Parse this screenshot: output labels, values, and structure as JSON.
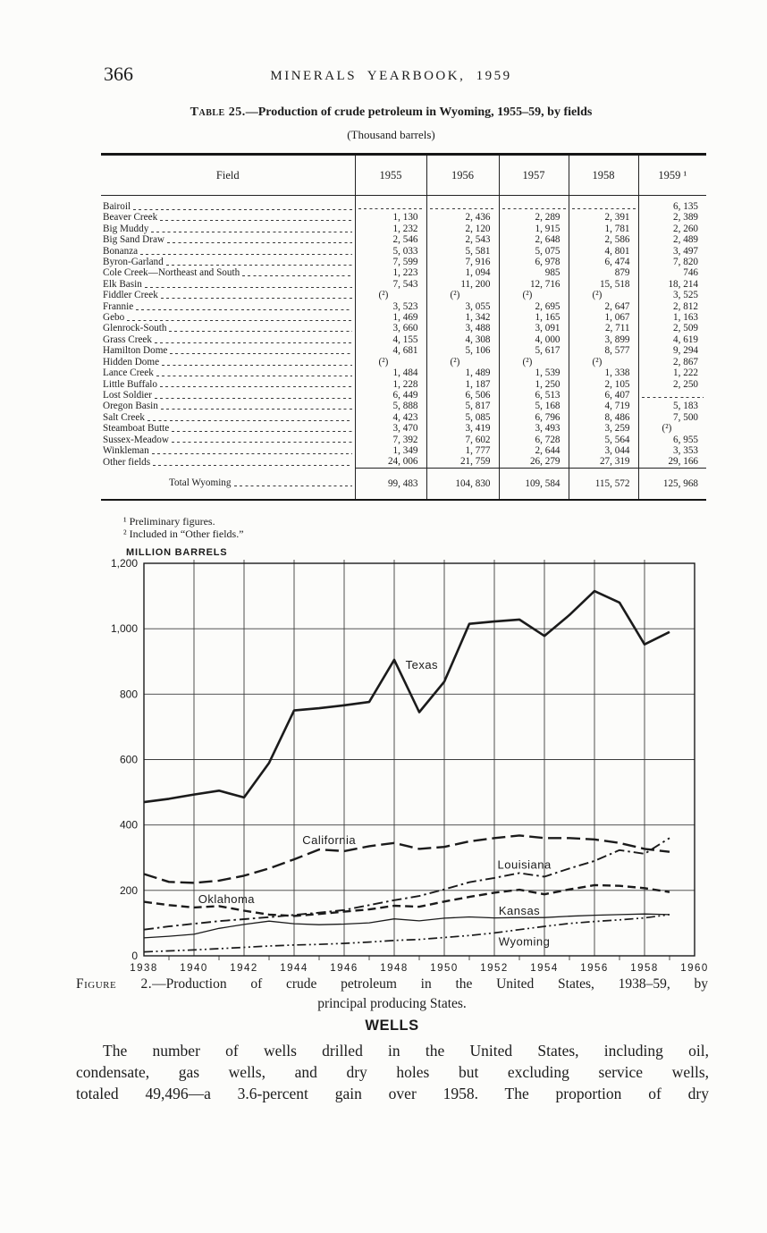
{
  "page": {
    "number": "366",
    "header_title": "MINERALS YEARBOOK, 1959"
  },
  "table": {
    "title_label": "Table 25.",
    "title_rest": "—Production of crude petroleum in Wyoming, 1955–59, by fields",
    "subtitle": "(Thousand barrels)",
    "columns": [
      "Field",
      "1955",
      "1956",
      "1957",
      "1958",
      "1959 ¹"
    ],
    "rows": [
      {
        "field": "Bairoil",
        "values": [
          "",
          "",
          "",
          "",
          "6, 135"
        ]
      },
      {
        "field": "Beaver Creek",
        "values": [
          "1, 130",
          "2, 436",
          "2, 289",
          "2, 391",
          "2, 389"
        ]
      },
      {
        "field": "Big Muddy",
        "values": [
          "1, 232",
          "2, 120",
          "1, 915",
          "1, 781",
          "2, 260"
        ]
      },
      {
        "field": "Big Sand Draw",
        "values": [
          "2, 546",
          "2, 543",
          "2, 648",
          "2, 586",
          "2, 489"
        ]
      },
      {
        "field": "Bonanza",
        "values": [
          "5, 033",
          "5, 581",
          "5, 075",
          "4, 801",
          "3, 497"
        ]
      },
      {
        "field": "Byron-Garland",
        "values": [
          "7, 599",
          "7, 916",
          "6, 978",
          "6, 474",
          "7, 820"
        ]
      },
      {
        "field": "Cole Creek—Northeast and South",
        "values": [
          "1, 223",
          "1, 094",
          "985",
          "879",
          "746"
        ]
      },
      {
        "field": "Elk Basin",
        "values": [
          "7, 543",
          "11, 200",
          "12, 716",
          "15, 518",
          "18, 214"
        ]
      },
      {
        "field": "Fiddler Creek",
        "values": [
          "(²)",
          "(²)",
          "(²)",
          "(²)",
          "3, 525"
        ]
      },
      {
        "field": "Frannie",
        "values": [
          "3, 523",
          "3, 055",
          "2, 695",
          "2, 647",
          "2, 812"
        ]
      },
      {
        "field": "Gebo",
        "values": [
          "1, 469",
          "1, 342",
          "1, 165",
          "1, 067",
          "1, 163"
        ]
      },
      {
        "field": "Glenrock-South",
        "values": [
          "3, 660",
          "3, 488",
          "3, 091",
          "2, 711",
          "2, 509"
        ]
      },
      {
        "field": "Grass Creek",
        "values": [
          "4, 155",
          "4, 308",
          "4, 000",
          "3, 899",
          "4, 619"
        ]
      },
      {
        "field": "Hamilton Dome",
        "values": [
          "4, 681",
          "5, 106",
          "5, 617",
          "8, 577",
          "9, 294"
        ]
      },
      {
        "field": "Hidden Dome",
        "values": [
          "(²)",
          "(²)",
          "(²)",
          "(²)",
          "2, 867"
        ]
      },
      {
        "field": "Lance Creek",
        "values": [
          "1, 484",
          "1, 489",
          "1, 539",
          "1, 338",
          "1, 222"
        ]
      },
      {
        "field": "Little Buffalo",
        "values": [
          "1, 228",
          "1, 187",
          "1, 250",
          "2, 105",
          "2, 250"
        ]
      },
      {
        "field": "Lost Soldier",
        "values": [
          "6, 449",
          "6, 506",
          "6, 513",
          "6, 407",
          ""
        ]
      },
      {
        "field": "Oregon Basin",
        "values": [
          "5, 888",
          "5, 817",
          "5, 168",
          "4, 719",
          "5, 183"
        ]
      },
      {
        "field": "Salt Creek",
        "values": [
          "4, 423",
          "5, 085",
          "6, 796",
          "8, 486",
          "7, 500"
        ]
      },
      {
        "field": "Steamboat Butte",
        "values": [
          "3, 470",
          "3, 419",
          "3, 493",
          "3, 259",
          "(²)"
        ]
      },
      {
        "field": "Sussex-Meadow",
        "values": [
          "7, 392",
          "7, 602",
          "6, 728",
          "5, 564",
          "6, 955"
        ]
      },
      {
        "field": "Winkleman",
        "values": [
          "1, 349",
          "1, 777",
          "2, 644",
          "3, 044",
          "3, 353"
        ]
      },
      {
        "field": "Other fields",
        "values": [
          "24, 006",
          "21, 759",
          "26, 279",
          "27, 319",
          "29, 166"
        ]
      }
    ],
    "total_row": {
      "field": "Total Wyoming",
      "values": [
        "99, 483",
        "104, 830",
        "109, 584",
        "115, 572",
        "125, 968"
      ]
    },
    "footnotes": [
      "¹ Preliminary figures.",
      "² Included in “Other fields.”"
    ]
  },
  "chart_data": {
    "type": "line",
    "title": "Production of crude petroleum in the United States, 1938-59, by principal producing States",
    "unit_label": "MILLION BARRELS",
    "xlabel": "",
    "ylabel": "MILLION BARRELS",
    "x_range": [
      1938,
      1960
    ],
    "ylim": [
      0,
      1200
    ],
    "grid": true,
    "x": [
      1938,
      1939,
      1940,
      1941,
      1942,
      1943,
      1944,
      1945,
      1946,
      1947,
      1948,
      1949,
      1950,
      1951,
      1952,
      1953,
      1954,
      1955,
      1956,
      1957,
      1958,
      1959
    ],
    "xticks": [
      1938,
      1940,
      1942,
      1944,
      1946,
      1948,
      1950,
      1952,
      1954,
      1956,
      1958,
      1960
    ],
    "yticks": [
      0,
      200,
      400,
      600,
      800,
      1000,
      1200
    ],
    "ytick_labels": [
      "0",
      "200",
      "400",
      "600",
      "800",
      "1,000",
      "1,200"
    ],
    "series": [
      {
        "name": "Texas",
        "style": "solid-thick",
        "values": [
          470,
          480,
          493,
          505,
          484,
          590,
          750,
          757,
          766,
          776,
          905,
          745,
          838,
          1015,
          1022,
          1028,
          978,
          1042,
          1115,
          1080,
          952,
          990
        ],
        "label_anchor": {
          "x": 1948.45,
          "y": 888,
          "anchor": "start"
        }
      },
      {
        "name": "California",
        "style": "long-dash",
        "values": [
          250,
          226,
          223,
          230,
          245,
          267,
          295,
          325,
          320,
          335,
          345,
          327,
          333,
          350,
          360,
          368,
          360,
          360,
          356,
          345,
          327,
          318
        ],
        "label_anchor": {
          "x": 1945.4,
          "y": 352,
          "anchor": "middle"
        }
      },
      {
        "name": "Oklahoma",
        "style": "dash",
        "values": [
          165,
          155,
          148,
          152,
          138,
          126,
          122,
          128,
          135,
          142,
          153,
          150,
          166,
          180,
          193,
          202,
          188,
          203,
          216,
          214,
          207,
          195
        ],
        "label_anchor": {
          "x": 1941.3,
          "y": 172,
          "anchor": "middle"
        }
      },
      {
        "name": "Louisiana",
        "style": "dash-dot",
        "values": [
          80,
          90,
          98,
          106,
          112,
          118,
          125,
          132,
          140,
          155,
          170,
          183,
          203,
          225,
          238,
          253,
          242,
          267,
          290,
          323,
          312,
          360
        ],
        "label_anchor": {
          "x": 1953.2,
          "y": 277,
          "anchor": "middle"
        }
      },
      {
        "name": "Kansas",
        "style": "solid-thin",
        "values": [
          55,
          60,
          66,
          84,
          96,
          106,
          98,
          95,
          97,
          101,
          113,
          107,
          115,
          119,
          116,
          117,
          117,
          121,
          124,
          126,
          128,
          126
        ],
        "label_anchor": {
          "x": 1953.0,
          "y": 136,
          "anchor": "middle"
        }
      },
      {
        "name": "Wyoming",
        "style": "dash-dot-dot",
        "values": [
          12,
          15,
          18,
          22,
          26,
          30,
          33,
          35,
          38,
          42,
          47,
          50,
          56,
          62,
          70,
          80,
          90,
          99,
          105,
          110,
          116,
          126
        ],
        "label_anchor": {
          "x": 1953.2,
          "y": 42,
          "anchor": "middle"
        }
      }
    ]
  },
  "figure_caption": {
    "label": "Figure 2.",
    "line1_rest": "—Production of crude petroleum in the United States, 1938–59, by",
    "line2": "principal producing States."
  },
  "wells": {
    "heading": "WELLS",
    "lines": [
      "The number of wells drilled in the United States, including oil,",
      "condensate, gas wells, and dry holes but excluding service wells,",
      "totaled 49,496—a 3.6-percent gain over 1958.  The proportion of dry"
    ]
  }
}
